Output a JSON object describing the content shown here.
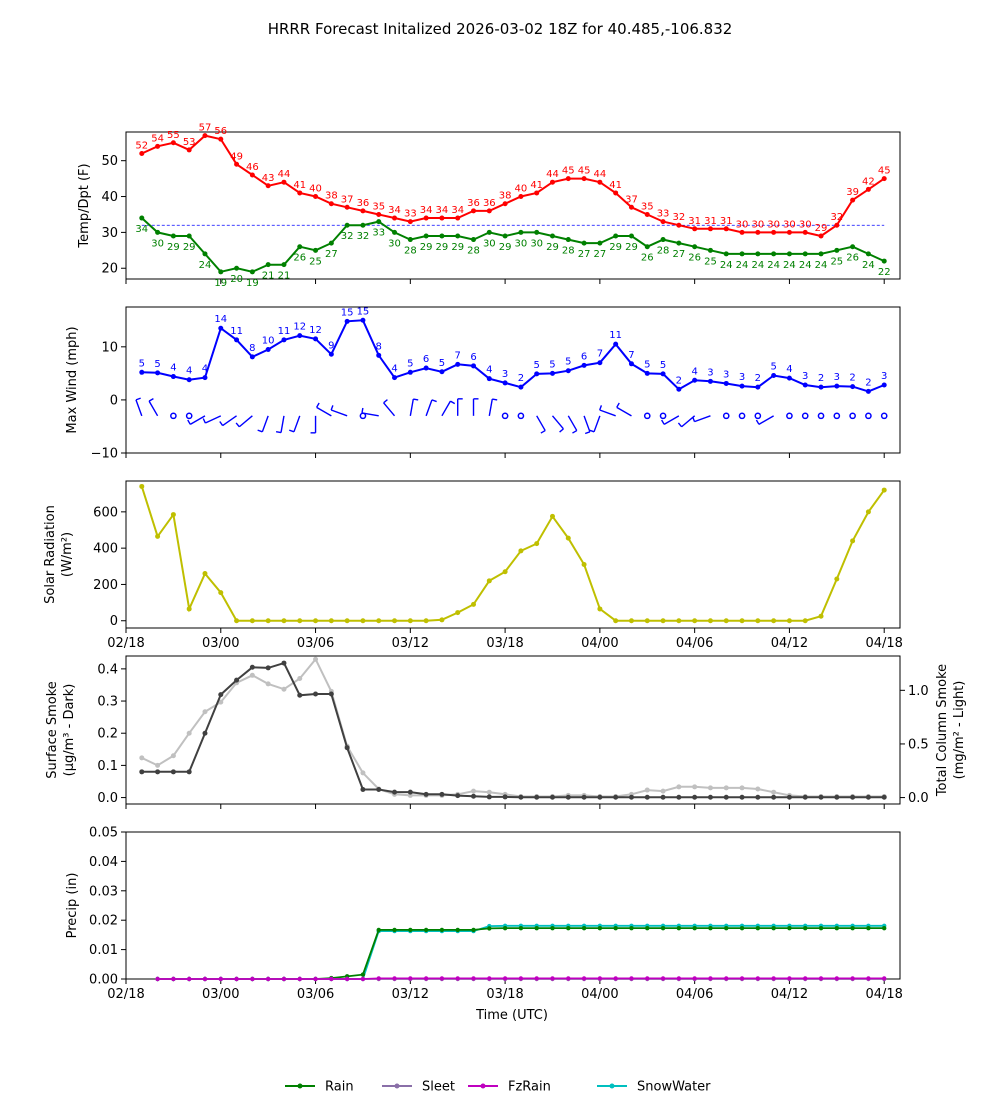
{
  "title": "HRRR Forecast Initalized 2026-03-02 18Z for 40.485,-106.832",
  "x_tick_labels": [
    "02/18",
    "03/00",
    "03/06",
    "03/12",
    "03/18",
    "04/00",
    "04/06",
    "04/12",
    "04/18"
  ],
  "x_axis_label": "Time (UTC)",
  "colors": {
    "temp": "#ff0000",
    "dewpoint": "#008000",
    "wind": "#0000ff",
    "solar": "#bfbf00",
    "smoke_dark": "#404040",
    "smoke_light": "#c0c0c0",
    "rain": "#008000",
    "sleet": "#8a6fa8",
    "fzrain": "#bf00bf",
    "snowwater": "#00bfbf"
  },
  "chart_data": [
    {
      "type": "line",
      "panel": "temperature",
      "ylabel": "Temp/Dpt (F)",
      "ylim": [
        17,
        58
      ],
      "yticks": [
        "20",
        "30",
        "40",
        "50"
      ],
      "x_hours": [
        1,
        2,
        3,
        4,
        5,
        6,
        7,
        8,
        9,
        10,
        11,
        12,
        13,
        14,
        15,
        16,
        17,
        18,
        19,
        20,
        21,
        22,
        23,
        24,
        25,
        26,
        27,
        28,
        29,
        30,
        31,
        32,
        33,
        34,
        35,
        36,
        37,
        38,
        39,
        40,
        41,
        42,
        43,
        44,
        45,
        46,
        47,
        48
      ],
      "reference_line": 32,
      "series": [
        {
          "name": "Temp",
          "values": [
            52,
            54,
            55,
            53,
            57,
            56,
            49,
            46,
            43,
            44,
            41,
            40,
            38,
            37,
            36,
            35,
            34,
            33,
            34,
            34,
            34,
            36,
            36,
            38,
            40,
            41,
            44,
            45,
            45,
            44,
            41,
            37,
            35,
            33,
            32,
            31,
            31,
            31,
            30,
            30,
            30,
            30,
            30,
            29,
            32,
            39,
            42,
            45
          ],
          "labels": [
            "52",
            "54",
            "55",
            "53",
            "57",
            "56",
            "49",
            "46",
            "43",
            "44",
            "41",
            "40",
            "38",
            "37",
            "36",
            "35",
            "34",
            "33",
            "34",
            "34",
            "34",
            "36",
            "36",
            "38",
            "40",
            "41",
            "44",
            "45",
            "45",
            "44",
            "41",
            "37",
            "35",
            "33",
            "32",
            "31",
            "31",
            "31",
            "30",
            "30",
            "30",
            "30",
            "30",
            "29",
            "32",
            "39",
            "42",
            "45"
          ]
        },
        {
          "name": "Dewpoint",
          "values": [
            34,
            30,
            29,
            29,
            24,
            19,
            20,
            19,
            21,
            21,
            26,
            25,
            27,
            32,
            32,
            33,
            30,
            28,
            29,
            29,
            29,
            28,
            30,
            29,
            30,
            30,
            29,
            28,
            27,
            27,
            29,
            29,
            26,
            28,
            27,
            26,
            25,
            24,
            24,
            24,
            24,
            24,
            24,
            24,
            25,
            26,
            24,
            22
          ],
          "labels": [
            "34",
            "30",
            "29",
            "29",
            "24",
            "19",
            "20",
            "19",
            "21",
            "21",
            "26",
            "25",
            "27",
            "32",
            "32",
            "33",
            "30",
            "28",
            "29",
            "29",
            "29",
            "28",
            "30",
            "29",
            "30",
            "30",
            "29",
            "28",
            "27",
            "27",
            "29",
            "29",
            "26",
            "28",
            "27",
            "26",
            "25",
            "24",
            "24",
            "24",
            "24",
            "24",
            "24",
            "24",
            "25",
            "26",
            "24",
            "22"
          ]
        }
      ]
    },
    {
      "type": "line",
      "panel": "wind",
      "ylabel": "Max Wind (mph)",
      "ylim": [
        -10,
        17.5
      ],
      "yticks": [
        "−10",
        "0",
        "10"
      ],
      "x_hours": [
        1,
        2,
        3,
        4,
        5,
        6,
        7,
        8,
        9,
        10,
        11,
        12,
        13,
        14,
        15,
        16,
        17,
        18,
        19,
        20,
        21,
        22,
        23,
        24,
        25,
        26,
        27,
        28,
        29,
        30,
        31,
        32,
        33,
        34,
        35,
        36,
        37,
        38,
        39,
        40,
        41,
        42,
        43,
        44,
        45,
        46,
        47,
        48
      ],
      "series": [
        {
          "name": "Max Wind",
          "values": [
            5.2,
            5.1,
            4.4,
            3.8,
            4.2,
            13.5,
            11.3,
            8.1,
            9.5,
            11.3,
            12.1,
            11.5,
            8.6,
            14.8,
            15,
            8.4,
            4.2,
            5.2,
            6.0,
            5.3,
            6.7,
            6.4,
            4.0,
            3.2,
            2.4,
            4.9,
            5.0,
            5.5,
            6.5,
            7.0,
            10.5,
            6.8,
            5.0,
            4.9,
            2.0,
            3.7,
            3.5,
            3.1,
            2.6,
            2.4,
            4.6,
            4.1,
            2.8,
            2.4,
            2.6,
            2.5,
            1.6,
            2.8
          ],
          "labels": [
            "5",
            "5",
            "4",
            "4",
            "4",
            "14",
            "11",
            "8",
            "10",
            "11",
            "12",
            "12",
            "9",
            "15",
            "15",
            "8",
            "4",
            "5",
            "6",
            "5",
            "7",
            "6",
            "4",
            "3",
            "2",
            "5",
            "5",
            "5",
            "6",
            "7",
            "11",
            "7",
            "5",
            "5",
            "2",
            "4",
            "3",
            "3",
            "3",
            "2",
            "5",
            "4",
            "3",
            "2",
            "3",
            "2",
            "2",
            "3"
          ]
        }
      ],
      "wind_barbs_deg": [
        340,
        330,
        null,
        null,
        240,
        245,
        235,
        230,
        200,
        190,
        200,
        180,
        300,
        290,
        null,
        280,
        320,
        10,
        20,
        30,
        360,
        360,
        10,
        null,
        null,
        150,
        140,
        150,
        160,
        200,
        290,
        300,
        null,
        null,
        240,
        230,
        250,
        null,
        null,
        null,
        240,
        null,
        null,
        null,
        null,
        null,
        null,
        null
      ]
    },
    {
      "type": "line",
      "panel": "solar",
      "ylabel": "Solar Radiation",
      "ylabel2": "(W/m²)",
      "ylim": [
        -40,
        770
      ],
      "yticks": [
        "0",
        "200",
        "400",
        "600"
      ],
      "x_hours": [
        1,
        2,
        3,
        4,
        5,
        6,
        7,
        8,
        9,
        10,
        11,
        12,
        13,
        14,
        15,
        16,
        17,
        18,
        19,
        20,
        21,
        22,
        23,
        24,
        25,
        26,
        27,
        28,
        29,
        30,
        31,
        32,
        33,
        34,
        35,
        36,
        37,
        38,
        39,
        40,
        41,
        42,
        43,
        44,
        45,
        46,
        47,
        48
      ],
      "series": [
        {
          "name": "Solar Radiation",
          "values": [
            740,
            465,
            585,
            65,
            260,
            155,
            0,
            0,
            0,
            0,
            0,
            0,
            0,
            0,
            0,
            0,
            0,
            0,
            0,
            5,
            45,
            90,
            220,
            270,
            385,
            425,
            575,
            455,
            310,
            65,
            0,
            0,
            0,
            0,
            0,
            0,
            0,
            0,
            0,
            0,
            0,
            0,
            0,
            25,
            230,
            440,
            600,
            720
          ]
        }
      ]
    },
    {
      "type": "line",
      "panel": "smoke",
      "ylabel": "Surface Smoke",
      "ylabel2": "(μg/m³ - Dark)",
      "ylabel_right": "Total Column Smoke",
      "ylabel_right2": "(mg/m² - Light)",
      "ylim": [
        -0.02,
        0.44
      ],
      "ylim_right": [
        -0.06,
        1.32
      ],
      "yticks": [
        "0.0",
        "0.1",
        "0.2",
        "0.3",
        "0.4"
      ],
      "yticks_right": [
        "0.0",
        "0.5",
        "1.0"
      ],
      "x_hours": [
        1,
        2,
        3,
        4,
        5,
        6,
        7,
        8,
        9,
        10,
        11,
        12,
        13,
        14,
        15,
        16,
        17,
        18,
        19,
        20,
        21,
        22,
        23,
        24,
        25,
        26,
        27,
        28,
        29,
        30,
        31,
        32,
        33,
        34,
        35,
        36,
        37,
        38,
        39,
        40,
        41,
        42,
        43,
        44,
        45,
        46,
        47,
        48
      ],
      "series": [
        {
          "name": "Surface Smoke",
          "axis": "left",
          "values": [
            0.08,
            0.08,
            0.08,
            0.08,
            0.2,
            0.32,
            0.365,
            0.405,
            0.403,
            0.418,
            0.318,
            0.322,
            0.322,
            0.155,
            0.025,
            0.025,
            0.017,
            0.017,
            0.01,
            0.01,
            0.006,
            0.004,
            0.002,
            0.002,
            0.001,
            0.001,
            0.001,
            0.001,
            0.001,
            0.001,
            0.001,
            0.001,
            0.001,
            0.001,
            0.001,
            0.001,
            0.001,
            0.001,
            0.001,
            0.001,
            0.001,
            0.001,
            0.001,
            0.001,
            0.001,
            0.001,
            0.001,
            0.001
          ]
        },
        {
          "name": "Total Column Smoke",
          "axis": "right",
          "values": [
            0.37,
            0.3,
            0.39,
            0.6,
            0.8,
            0.89,
            1.07,
            1.14,
            1.06,
            1.01,
            1.11,
            1.29,
            0.99,
            0.48,
            0.23,
            0.08,
            0.03,
            0.02,
            0.02,
            0.02,
            0.03,
            0.06,
            0.05,
            0.03,
            0.01,
            0.01,
            0.01,
            0.02,
            0.02,
            0.01,
            0.01,
            0.03,
            0.07,
            0.06,
            0.1,
            0.1,
            0.09,
            0.09,
            0.09,
            0.08,
            0.05,
            0.02,
            0.01,
            0.01,
            0.01,
            0.01,
            0.01,
            0.01
          ]
        }
      ]
    },
    {
      "type": "line",
      "panel": "precip",
      "ylabel": "Precip (in)",
      "ylim": [
        0,
        0.05
      ],
      "yticks": [
        "0.00",
        "0.01",
        "0.02",
        "0.03",
        "0.04",
        "0.05"
      ],
      "x_hours": [
        2,
        3,
        4,
        5,
        6,
        7,
        8,
        9,
        10,
        11,
        12,
        13,
        14,
        15,
        16,
        17,
        18,
        19,
        20,
        21,
        22,
        23,
        24,
        25,
        26,
        27,
        28,
        29,
        30,
        31,
        32,
        33,
        34,
        35,
        36,
        37,
        38,
        39,
        40,
        41,
        42,
        43,
        44,
        45,
        46,
        47,
        48
      ],
      "series": [
        {
          "name": "Rain",
          "values": [
            0,
            0,
            0,
            0,
            0,
            0,
            0,
            0,
            0,
            0,
            0,
            0.0003,
            0.0009,
            0.0015,
            0.0167,
            0.0167,
            0.0167,
            0.0167,
            0.0167,
            0.0167,
            0.0167,
            0.0172,
            0.0173,
            0.0173,
            0.0173,
            0.0173,
            0.0173,
            0.0173,
            0.0173,
            0.0173,
            0.0173,
            0.0173,
            0.0173,
            0.0173,
            0.0173,
            0.0173,
            0.0173,
            0.0173,
            0.0173,
            0.0173,
            0.0173,
            0.0173,
            0.0173,
            0.0173,
            0.0173,
            0.0173,
            0.0173
          ]
        },
        {
          "name": "Sleet",
          "values": [
            0,
            0,
            0,
            0,
            0,
            0,
            0,
            0,
            0,
            0,
            0,
            0,
            0,
            0,
            0,
            0,
            0,
            0,
            0,
            0,
            0,
            0,
            0,
            0,
            0,
            0,
            0,
            0,
            0,
            0,
            0,
            0,
            0,
            0,
            0,
            0,
            0,
            0,
            0,
            0,
            0,
            0,
            0,
            0,
            0,
            0,
            0
          ]
        },
        {
          "name": "FzRain",
          "values": [
            0,
            0,
            0,
            0,
            0,
            0,
            0,
            0,
            0,
            0,
            0,
            0,
            0,
            0,
            0.0002,
            0.0002,
            0.0002,
            0.0002,
            0.0002,
            0.0002,
            0.0002,
            0.0002,
            0.0002,
            0.0002,
            0.0002,
            0.0002,
            0.0002,
            0.0002,
            0.0002,
            0.0002,
            0.0002,
            0.0002,
            0.0002,
            0.0002,
            0.0002,
            0.0002,
            0.0002,
            0.0002,
            0.0002,
            0.0002,
            0.0002,
            0.0002,
            0.0002,
            0.0002,
            0.0002,
            0.0002,
            0.0002
          ]
        },
        {
          "name": "SnowWater",
          "values": [
            0,
            0,
            0,
            0,
            0,
            0,
            0,
            0,
            0,
            0,
            0,
            0,
            0,
            0,
            0.0163,
            0.0163,
            0.0163,
            0.0163,
            0.0163,
            0.0163,
            0.0163,
            0.018,
            0.0181,
            0.0181,
            0.0181,
            0.0181,
            0.0181,
            0.0181,
            0.0181,
            0.0181,
            0.0181,
            0.0181,
            0.0181,
            0.0181,
            0.0181,
            0.0181,
            0.0181,
            0.0181,
            0.0181,
            0.0181,
            0.0181,
            0.0181,
            0.0181,
            0.0181,
            0.0181,
            0.0181,
            0.0181
          ]
        }
      ]
    }
  ],
  "legend": [
    {
      "name": "Rain",
      "color": "#008000"
    },
    {
      "name": "Sleet",
      "color": "#8a6fa8"
    },
    {
      "name": "FzRain",
      "color": "#bf00bf"
    },
    {
      "name": "SnowWater",
      "color": "#00bfbf"
    }
  ]
}
